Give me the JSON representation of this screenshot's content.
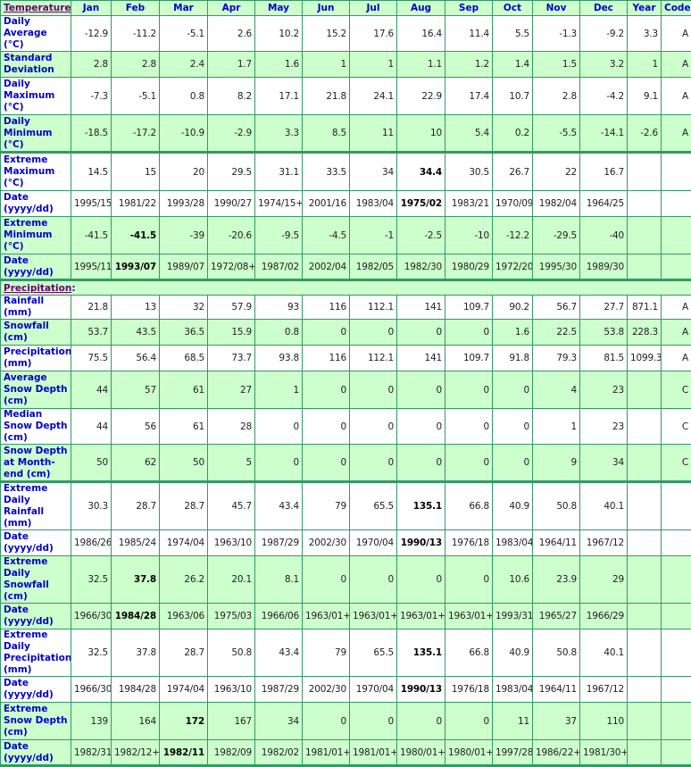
{
  "columns": [
    "Jan",
    "Feb",
    "Mar",
    "Apr",
    "May",
    "Jun",
    "Jul",
    "Aug",
    "Sep",
    "Oct",
    "Nov",
    "Dec",
    "Year",
    "Code"
  ],
  "colors": {
    "border": "#339966",
    "shade": "#ccffcc",
    "label": "#0000cc",
    "section": "#660066"
  },
  "sections": [
    {
      "title": "Temperature",
      "rows": [
        {
          "label": "Daily Average (°C)",
          "values": [
            "-12.9",
            "-11.2",
            "-5.1",
            "2.6",
            "10.2",
            "15.2",
            "17.6",
            "16.4",
            "11.4",
            "5.5",
            "-1.3",
            "-9.2",
            "3.3",
            "A"
          ],
          "bold": []
        },
        {
          "label": "Standard Deviation",
          "values": [
            "2.8",
            "2.8",
            "2.4",
            "1.7",
            "1.6",
            "1",
            "1",
            "1.1",
            "1.2",
            "1.4",
            "1.5",
            "3.2",
            "1",
            "A"
          ],
          "bold": []
        },
        {
          "label": "Daily Maximum (°C)",
          "values": [
            "-7.3",
            "-5.1",
            "0.8",
            "8.2",
            "17.1",
            "21.8",
            "24.1",
            "22.9",
            "17.4",
            "10.7",
            "2.8",
            "-4.2",
            "9.1",
            "A"
          ],
          "bold": []
        },
        {
          "label": "Daily Minimum (°C)",
          "values": [
            "-18.5",
            "-17.2",
            "-10.9",
            "-2.9",
            "3.3",
            "8.5",
            "11",
            "10",
            "5.4",
            "0.2",
            "-5.5",
            "-14.1",
            "-2.6",
            "A"
          ],
          "bold": []
        },
        {
          "label": "Extreme Maximum (°C)",
          "values": [
            "14.5",
            "15",
            "20",
            "29.5",
            "31.1",
            "33.5",
            "34",
            "34.4",
            "30.5",
            "26.7",
            "22",
            "16.7",
            "",
            ""
          ],
          "bold": [
            7
          ]
        },
        {
          "label": "Date (yyyy/dd)",
          "values": [
            "1995/15",
            "1981/22",
            "1993/28",
            "1990/27",
            "1974/15+",
            "2001/16",
            "1983/04",
            "1975/02",
            "1983/21",
            "1970/09",
            "1982/04",
            "1964/25",
            "",
            ""
          ],
          "bold": [
            7
          ]
        },
        {
          "label": "Extreme Minimum (°C)",
          "values": [
            "-41.5",
            "-41.5",
            "-39",
            "-20.6",
            "-9.5",
            "-4.5",
            "-1",
            "-2.5",
            "-10",
            "-12.2",
            "-29.5",
            "-40",
            "",
            ""
          ],
          "bold": [
            1
          ]
        },
        {
          "label": "Date (yyyy/dd)",
          "values": [
            "1995/11",
            "1993/07",
            "1989/07",
            "1972/08+",
            "1987/02",
            "2002/04",
            "1982/05",
            "1982/30",
            "1980/29",
            "1972/20",
            "1995/30",
            "1989/30",
            "",
            ""
          ],
          "bold": [
            1
          ]
        }
      ]
    },
    {
      "title": "Precipitation",
      "rows": [
        {
          "label": "Rainfall (mm)",
          "values": [
            "21.8",
            "13",
            "32",
            "57.9",
            "93",
            "116",
            "112.1",
            "141",
            "109.7",
            "90.2",
            "56.7",
            "27.7",
            "871.1",
            "A"
          ],
          "bold": []
        },
        {
          "label": "Snowfall (cm)",
          "values": [
            "53.7",
            "43.5",
            "36.5",
            "15.9",
            "0.8",
            "0",
            "0",
            "0",
            "0",
            "1.6",
            "22.5",
            "53.8",
            "228.3",
            "A"
          ],
          "bold": []
        },
        {
          "label": "Precipitation (mm)",
          "values": [
            "75.5",
            "56.4",
            "68.5",
            "73.7",
            "93.8",
            "116",
            "112.1",
            "141",
            "109.7",
            "91.8",
            "79.3",
            "81.5",
            "1099.3",
            "A"
          ],
          "bold": []
        },
        {
          "label": "Average Snow Depth (cm)",
          "values": [
            "44",
            "57",
            "61",
            "27",
            "1",
            "0",
            "0",
            "0",
            "0",
            "0",
            "4",
            "23",
            "",
            "C"
          ],
          "bold": []
        },
        {
          "label": "Median Snow Depth (cm)",
          "values": [
            "44",
            "56",
            "61",
            "28",
            "0",
            "0",
            "0",
            "0",
            "0",
            "0",
            "1",
            "23",
            "",
            "C"
          ],
          "bold": []
        },
        {
          "label": "Snow Depth at Month-end (cm)",
          "values": [
            "50",
            "62",
            "50",
            "5",
            "0",
            "0",
            "0",
            "0",
            "0",
            "0",
            "9",
            "34",
            "",
            "C"
          ],
          "bold": []
        },
        {
          "label": "Extreme Daily Rainfall (mm)",
          "values": [
            "30.3",
            "28.7",
            "28.7",
            "45.7",
            "43.4",
            "79",
            "65.5",
            "135.1",
            "66.8",
            "40.9",
            "50.8",
            "40.1",
            "",
            ""
          ],
          "bold": [
            7
          ]
        },
        {
          "label": "Date (yyyy/dd)",
          "values": [
            "1986/26",
            "1985/24",
            "1974/04",
            "1963/10",
            "1987/29",
            "2002/30",
            "1970/04",
            "1990/13",
            "1976/18",
            "1983/04",
            "1964/11",
            "1967/12",
            "",
            ""
          ],
          "bold": [
            7
          ]
        },
        {
          "label": "Extreme Daily Snowfall (cm)",
          "values": [
            "32.5",
            "37.8",
            "26.2",
            "20.1",
            "8.1",
            "0",
            "0",
            "0",
            "0",
            "10.6",
            "23.9",
            "29",
            "",
            ""
          ],
          "bold": [
            1
          ]
        },
        {
          "label": "Date (yyyy/dd)",
          "values": [
            "1966/30",
            "1984/28",
            "1963/06",
            "1975/03",
            "1966/06",
            "1963/01+",
            "1963/01+",
            "1963/01+",
            "1963/01+",
            "1993/31",
            "1965/27",
            "1966/29",
            "",
            ""
          ],
          "bold": [
            1
          ]
        },
        {
          "label": "Extreme Daily Precipitation (mm)",
          "values": [
            "32.5",
            "37.8",
            "28.7",
            "50.8",
            "43.4",
            "79",
            "65.5",
            "135.1",
            "66.8",
            "40.9",
            "50.8",
            "40.1",
            "",
            ""
          ],
          "bold": [
            7
          ]
        },
        {
          "label": "Date (yyyy/dd)",
          "values": [
            "1966/30",
            "1984/28",
            "1974/04",
            "1963/10",
            "1987/29",
            "2002/30",
            "1970/04",
            "1990/13",
            "1976/18",
            "1983/04",
            "1964/11",
            "1967/12",
            "",
            ""
          ],
          "bold": [
            7
          ]
        },
        {
          "label": "Extreme Snow Depth (cm)",
          "values": [
            "139",
            "164",
            "172",
            "167",
            "34",
            "0",
            "0",
            "0",
            "0",
            "11",
            "37",
            "110",
            "",
            ""
          ],
          "bold": [
            2
          ]
        },
        {
          "label": "Date (yyyy/dd)",
          "values": [
            "1982/31",
            "1982/12+",
            "1982/11",
            "1982/09",
            "1982/02",
            "1981/01+",
            "1981/01+",
            "1980/01+",
            "1980/01+",
            "1997/28",
            "1986/22+",
            "1981/30+",
            "",
            ""
          ],
          "bold": [
            2
          ]
        }
      ]
    }
  ]
}
